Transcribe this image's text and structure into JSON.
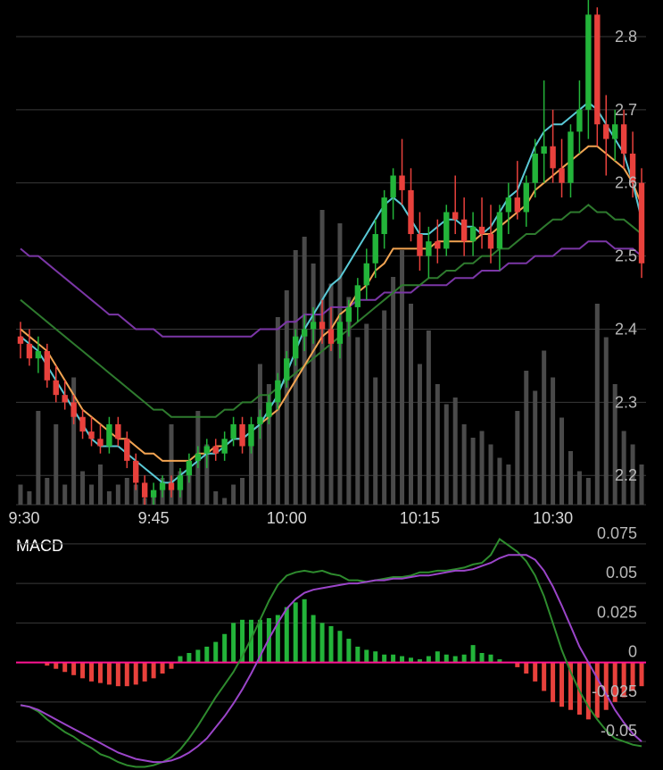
{
  "chart_data": [
    {
      "type": "candlestick",
      "panel": "price",
      "x_tick_labels": [
        "9:30",
        "9:45",
        "10:00",
        "10:15",
        "10:30"
      ],
      "y_tick_labels": [
        "2.8",
        "2.7",
        "2.6",
        "2.5",
        "2.4",
        "2.3",
        "2.2"
      ],
      "y_ticks": [
        2.8,
        2.7,
        2.6,
        2.5,
        2.4,
        2.3,
        2.2
      ],
      "ylim": [
        2.16,
        2.85
      ],
      "bar_count": 71,
      "colors": {
        "up": "#23b43a",
        "down": "#e8413c",
        "volume": "#4a4a4a",
        "ma1": "#5ac9d6",
        "ma2": "#f2a452",
        "ma3": "#2e7a2e",
        "ma4": "#7b36a6"
      },
      "ohlc": [
        [
          2.39,
          2.41,
          2.36,
          2.38
        ],
        [
          2.38,
          2.4,
          2.35,
          2.36
        ],
        [
          2.36,
          2.39,
          2.34,
          2.37
        ],
        [
          2.37,
          2.38,
          2.32,
          2.33
        ],
        [
          2.33,
          2.35,
          2.3,
          2.31
        ],
        [
          2.31,
          2.33,
          2.29,
          2.3
        ],
        [
          2.3,
          2.31,
          2.27,
          2.28
        ],
        [
          2.28,
          2.29,
          2.25,
          2.26
        ],
        [
          2.26,
          2.28,
          2.24,
          2.25
        ],
        [
          2.25,
          2.27,
          2.23,
          2.24
        ],
        [
          2.24,
          2.28,
          2.23,
          2.27
        ],
        [
          2.27,
          2.28,
          2.24,
          2.25
        ],
        [
          2.25,
          2.26,
          2.21,
          2.22
        ],
        [
          2.22,
          2.23,
          2.18,
          2.19
        ],
        [
          2.19,
          2.2,
          2.16,
          2.17
        ],
        [
          2.17,
          2.19,
          2.16,
          2.18
        ],
        [
          2.18,
          2.2,
          2.17,
          2.19
        ],
        [
          2.19,
          2.2,
          2.17,
          2.18
        ],
        [
          2.18,
          2.21,
          2.17,
          2.2
        ],
        [
          2.2,
          2.23,
          2.19,
          2.22
        ],
        [
          2.22,
          2.24,
          2.21,
          2.23
        ],
        [
          2.23,
          2.25,
          2.21,
          2.24
        ],
        [
          2.24,
          2.25,
          2.22,
          2.23
        ],
        [
          2.23,
          2.26,
          2.22,
          2.25
        ],
        [
          2.25,
          2.28,
          2.24,
          2.27
        ],
        [
          2.27,
          2.28,
          2.23,
          2.24
        ],
        [
          2.24,
          2.28,
          2.23,
          2.27
        ],
        [
          2.27,
          2.29,
          2.25,
          2.28
        ],
        [
          2.28,
          2.31,
          2.27,
          2.3
        ],
        [
          2.3,
          2.34,
          2.29,
          2.33
        ],
        [
          2.33,
          2.37,
          2.32,
          2.36
        ],
        [
          2.36,
          2.4,
          2.35,
          2.39
        ],
        [
          2.39,
          2.42,
          2.37,
          2.4
        ],
        [
          2.4,
          2.43,
          2.38,
          2.41
        ],
        [
          2.41,
          2.44,
          2.38,
          2.4
        ],
        [
          2.4,
          2.43,
          2.37,
          2.38
        ],
        [
          2.38,
          2.42,
          2.36,
          2.41
        ],
        [
          2.41,
          2.44,
          2.39,
          2.43
        ],
        [
          2.43,
          2.47,
          2.41,
          2.46
        ],
        [
          2.46,
          2.51,
          2.44,
          2.49
        ],
        [
          2.49,
          2.55,
          2.47,
          2.53
        ],
        [
          2.53,
          2.59,
          2.51,
          2.58
        ],
        [
          2.58,
          2.62,
          2.55,
          2.61
        ],
        [
          2.61,
          2.66,
          2.57,
          2.59
        ],
        [
          2.59,
          2.62,
          2.52,
          2.53
        ],
        [
          2.53,
          2.56,
          2.48,
          2.5
        ],
        [
          2.5,
          2.54,
          2.47,
          2.52
        ],
        [
          2.52,
          2.55,
          2.49,
          2.51
        ],
        [
          2.51,
          2.57,
          2.5,
          2.56
        ],
        [
          2.56,
          2.61,
          2.53,
          2.55
        ],
        [
          2.55,
          2.58,
          2.5,
          2.52
        ],
        [
          2.52,
          2.56,
          2.5,
          2.54
        ],
        [
          2.54,
          2.58,
          2.51,
          2.53
        ],
        [
          2.53,
          2.57,
          2.49,
          2.51
        ],
        [
          2.51,
          2.57,
          2.48,
          2.56
        ],
        [
          2.56,
          2.6,
          2.53,
          2.58
        ],
        [
          2.58,
          2.63,
          2.55,
          2.56
        ],
        [
          2.56,
          2.61,
          2.54,
          2.6
        ],
        [
          2.6,
          2.66,
          2.58,
          2.64
        ],
        [
          2.64,
          2.74,
          2.6,
          2.65
        ],
        [
          2.65,
          2.7,
          2.6,
          2.62
        ],
        [
          2.62,
          2.66,
          2.58,
          2.6
        ],
        [
          2.6,
          2.68,
          2.58,
          2.67
        ],
        [
          2.67,
          2.74,
          2.64,
          2.7
        ],
        [
          2.7,
          2.85,
          2.66,
          2.83
        ],
        [
          2.83,
          2.84,
          2.65,
          2.68
        ],
        [
          2.68,
          2.72,
          2.61,
          2.66
        ],
        [
          2.66,
          2.7,
          2.63,
          2.68
        ],
        [
          2.68,
          2.7,
          2.62,
          2.64
        ],
        [
          2.64,
          2.67,
          2.58,
          2.6
        ],
        [
          2.6,
          2.62,
          2.47,
          2.49
        ]
      ],
      "volume": [
        3,
        2,
        14,
        4,
        12,
        3,
        19,
        5,
        3,
        6,
        2,
        3,
        4,
        3,
        1,
        2,
        4,
        12,
        5,
        6,
        14,
        9,
        2,
        1,
        3,
        4,
        10,
        21,
        18,
        28,
        32,
        38,
        40,
        36,
        44,
        33,
        42,
        31,
        25,
        27,
        19,
        29,
        34,
        38,
        30,
        21,
        26,
        18,
        15,
        16,
        12,
        10,
        11,
        9,
        7,
        6,
        14,
        20,
        17,
        23,
        19,
        13,
        8,
        5,
        4,
        30,
        25,
        18,
        11,
        9,
        6
      ],
      "ma1": [
        2.39,
        2.38,
        2.37,
        2.35,
        2.33,
        2.31,
        2.29,
        2.27,
        2.25,
        2.24,
        2.24,
        2.24,
        2.23,
        2.22,
        2.21,
        2.2,
        2.19,
        2.19,
        2.2,
        2.21,
        2.22,
        2.23,
        2.23,
        2.24,
        2.25,
        2.25,
        2.26,
        2.27,
        2.29,
        2.31,
        2.34,
        2.37,
        2.4,
        2.42,
        2.44,
        2.46,
        2.47,
        2.49,
        2.51,
        2.53,
        2.55,
        2.57,
        2.58,
        2.57,
        2.55,
        2.53,
        2.53,
        2.54,
        2.55,
        2.55,
        2.54,
        2.54,
        2.53,
        2.54,
        2.56,
        2.58,
        2.59,
        2.62,
        2.65,
        2.67,
        2.68,
        2.68,
        2.69,
        2.7,
        2.71,
        2.7,
        2.68,
        2.66,
        2.64,
        2.6,
        2.55
      ],
      "ma2": [
        2.4,
        2.39,
        2.38,
        2.37,
        2.35,
        2.33,
        2.31,
        2.29,
        2.28,
        2.27,
        2.26,
        2.25,
        2.25,
        2.24,
        2.23,
        2.23,
        2.22,
        2.22,
        2.22,
        2.22,
        2.23,
        2.23,
        2.24,
        2.24,
        2.25,
        2.25,
        2.26,
        2.27,
        2.28,
        2.29,
        2.31,
        2.33,
        2.35,
        2.37,
        2.39,
        2.4,
        2.42,
        2.43,
        2.45,
        2.46,
        2.48,
        2.49,
        2.51,
        2.51,
        2.51,
        2.51,
        2.51,
        2.52,
        2.52,
        2.52,
        2.52,
        2.52,
        2.53,
        2.53,
        2.54,
        2.55,
        2.56,
        2.57,
        2.59,
        2.6,
        2.61,
        2.62,
        2.63,
        2.64,
        2.65,
        2.65,
        2.64,
        2.63,
        2.62,
        2.6,
        2.57
      ],
      "ma3": [
        2.44,
        2.43,
        2.42,
        2.41,
        2.4,
        2.39,
        2.38,
        2.37,
        2.36,
        2.35,
        2.34,
        2.33,
        2.32,
        2.31,
        2.3,
        2.29,
        2.29,
        2.28,
        2.28,
        2.28,
        2.28,
        2.28,
        2.28,
        2.29,
        2.29,
        2.3,
        2.3,
        2.31,
        2.31,
        2.32,
        2.33,
        2.34,
        2.35,
        2.36,
        2.37,
        2.38,
        2.39,
        2.4,
        2.41,
        2.42,
        2.43,
        2.44,
        2.45,
        2.46,
        2.46,
        2.46,
        2.47,
        2.47,
        2.48,
        2.48,
        2.49,
        2.49,
        2.5,
        2.5,
        2.51,
        2.51,
        2.52,
        2.53,
        2.53,
        2.54,
        2.55,
        2.55,
        2.56,
        2.56,
        2.57,
        2.56,
        2.56,
        2.55,
        2.55,
        2.54,
        2.53
      ],
      "ma4": [
        2.51,
        2.5,
        2.5,
        2.49,
        2.48,
        2.47,
        2.46,
        2.45,
        2.44,
        2.43,
        2.42,
        2.42,
        2.41,
        2.4,
        2.4,
        2.4,
        2.39,
        2.39,
        2.39,
        2.39,
        2.39,
        2.39,
        2.39,
        2.39,
        2.39,
        2.39,
        2.39,
        2.4,
        2.4,
        2.4,
        2.41,
        2.41,
        2.42,
        2.42,
        2.42,
        2.43,
        2.43,
        2.43,
        2.44,
        2.44,
        2.44,
        2.45,
        2.45,
        2.45,
        2.45,
        2.46,
        2.46,
        2.46,
        2.46,
        2.47,
        2.47,
        2.47,
        2.48,
        2.48,
        2.48,
        2.49,
        2.49,
        2.49,
        2.5,
        2.5,
        2.5,
        2.51,
        2.51,
        2.51,
        2.52,
        2.52,
        2.52,
        2.51,
        2.51,
        2.51,
        2.5
      ]
    },
    {
      "type": "macd",
      "panel": "macd",
      "title": "MACD",
      "y_tick_labels": [
        "0.075",
        "0.05",
        "0.025",
        "0",
        "-0.025",
        "-0.05"
      ],
      "y_ticks": [
        0.075,
        0.05,
        0.025,
        0,
        -0.025,
        -0.05
      ],
      "ylim": [
        -0.068,
        0.08
      ],
      "colors": {
        "positive": "#23b43a",
        "negative": "#e8413c",
        "macd_line": "#2e8b2e",
        "signal_line": "#9b45c9",
        "zero_line": "#ff1493"
      },
      "histogram": [
        0,
        0,
        0,
        -0.002,
        -0.004,
        -0.006,
        -0.008,
        -0.01,
        -0.012,
        -0.013,
        -0.014,
        -0.015,
        -0.015,
        -0.014,
        -0.012,
        -0.01,
        -0.007,
        -0.004,
        0.004,
        0.006,
        0.008,
        0.01,
        0.013,
        0.018,
        0.025,
        0.027,
        0.027,
        0.027,
        0.028,
        0.03,
        0.035,
        0.038,
        0.04,
        0.03,
        0.025,
        0.023,
        0.02,
        0.015,
        0.01,
        0.008,
        0.007,
        0.005,
        0.005,
        0.004,
        0.003,
        0.002,
        0.004,
        0.007,
        0.005,
        0.004,
        0.005,
        0.011,
        0.006,
        0.005,
        0.002,
        0,
        -0.003,
        -0.007,
        -0.012,
        -0.018,
        -0.025,
        -0.028,
        -0.03,
        -0.033,
        -0.036,
        -0.035,
        -0.03,
        -0.025,
        -0.022,
        -0.018,
        -0.015
      ],
      "macd": [
        -0.027,
        -0.028,
        -0.031,
        -0.036,
        -0.04,
        -0.044,
        -0.047,
        -0.051,
        -0.054,
        -0.058,
        -0.06,
        -0.063,
        -0.065,
        -0.066,
        -0.066,
        -0.065,
        -0.063,
        -0.06,
        -0.055,
        -0.048,
        -0.04,
        -0.031,
        -0.022,
        -0.014,
        -0.006,
        0.004,
        0.015,
        0.027,
        0.039,
        0.049,
        0.055,
        0.057,
        0.058,
        0.057,
        0.058,
        0.056,
        0.055,
        0.052,
        0.052,
        0.051,
        0.052,
        0.053,
        0.054,
        0.054,
        0.055,
        0.057,
        0.057,
        0.058,
        0.058,
        0.059,
        0.06,
        0.062,
        0.063,
        0.068,
        0.078,
        0.074,
        0.07,
        0.064,
        0.055,
        0.042,
        0.025,
        0.008,
        -0.006,
        -0.018,
        -0.028,
        -0.036,
        -0.043,
        -0.048,
        -0.05,
        -0.052,
        -0.053
      ],
      "signal": [
        -0.027,
        -0.028,
        -0.03,
        -0.033,
        -0.036,
        -0.039,
        -0.042,
        -0.045,
        -0.048,
        -0.051,
        -0.054,
        -0.057,
        -0.059,
        -0.061,
        -0.062,
        -0.063,
        -0.063,
        -0.062,
        -0.06,
        -0.057,
        -0.053,
        -0.048,
        -0.041,
        -0.034,
        -0.026,
        -0.017,
        -0.007,
        0.004,
        0.015,
        0.025,
        0.034,
        0.04,
        0.044,
        0.046,
        0.047,
        0.048,
        0.049,
        0.05,
        0.05,
        0.051,
        0.052,
        0.052,
        0.053,
        0.053,
        0.054,
        0.055,
        0.055,
        0.056,
        0.057,
        0.058,
        0.058,
        0.059,
        0.061,
        0.063,
        0.066,
        0.068,
        0.068,
        0.068,
        0.065,
        0.058,
        0.048,
        0.036,
        0.023,
        0.01,
        0,
        -0.01,
        -0.02,
        -0.03,
        -0.038,
        -0.045,
        -0.05
      ]
    }
  ]
}
